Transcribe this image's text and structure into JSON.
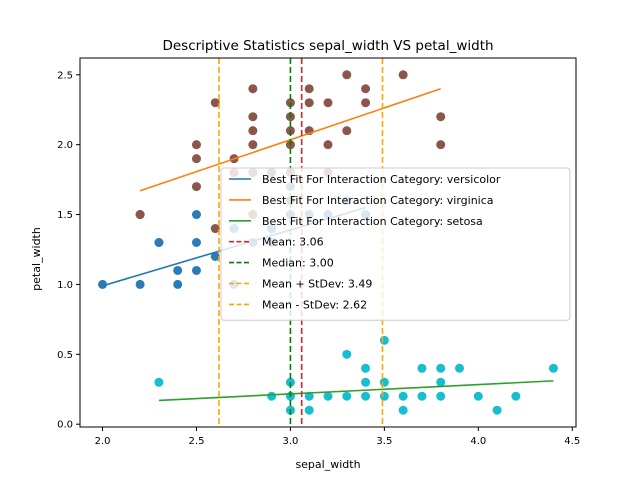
{
  "chart_data": {
    "type": "scatter",
    "title": "Descriptive Statistics sepal_width VS petal_width",
    "xlabel": "sepal_width",
    "ylabel": "petal_width",
    "xlim": [
      1.88,
      4.52
    ],
    "ylim": [
      -0.02,
      2.62
    ],
    "xticks": [
      2.0,
      2.5,
      3.0,
      3.5,
      4.0,
      4.5
    ],
    "xtick_labels": [
      "2.0",
      "2.5",
      "3.0",
      "3.5",
      "4.0",
      "4.5"
    ],
    "yticks": [
      0.0,
      0.5,
      1.0,
      1.5,
      2.0,
      2.5
    ],
    "ytick_labels": [
      "0.0",
      "0.5",
      "1.0",
      "1.5",
      "2.0",
      "2.5"
    ],
    "grid": false,
    "legend_position": "center-right",
    "scatter_groups": [
      {
        "color": "#2c7bb6",
        "points": [
          [
            2.0,
            1.0
          ],
          [
            2.2,
            1.0
          ],
          [
            2.2,
            1.5
          ],
          [
            2.3,
            1.3
          ],
          [
            2.3,
            1.3
          ],
          [
            2.4,
            1.0
          ],
          [
            2.4,
            1.1
          ],
          [
            2.5,
            1.1
          ],
          [
            2.5,
            1.5
          ],
          [
            2.5,
            1.3
          ],
          [
            2.6,
            1.2
          ],
          [
            2.7,
            1.0
          ],
          [
            2.7,
            1.4
          ],
          [
            2.8,
            1.3
          ],
          [
            2.8,
            1.5
          ],
          [
            2.9,
            1.3
          ],
          [
            2.9,
            1.4
          ],
          [
            3.0,
            1.5
          ],
          [
            3.0,
            1.7
          ],
          [
            3.1,
            1.5
          ],
          [
            3.2,
            1.5
          ],
          [
            3.3,
            1.6
          ],
          [
            3.4,
            1.5
          ]
        ]
      },
      {
        "color": "#8c564b",
        "points": [
          [
            2.2,
            1.5
          ],
          [
            2.5,
            1.7
          ],
          [
            2.5,
            1.9
          ],
          [
            2.5,
            2.0
          ],
          [
            2.6,
            1.4
          ],
          [
            2.6,
            2.3
          ],
          [
            2.7,
            1.8
          ],
          [
            2.7,
            1.9
          ],
          [
            2.8,
            1.5
          ],
          [
            2.8,
            1.8
          ],
          [
            2.8,
            2.0
          ],
          [
            2.8,
            2.1
          ],
          [
            2.8,
            2.2
          ],
          [
            2.8,
            2.4
          ],
          [
            2.9,
            1.8
          ],
          [
            3.0,
            1.6
          ],
          [
            3.0,
            1.8
          ],
          [
            3.0,
            2.0
          ],
          [
            3.0,
            2.1
          ],
          [
            3.0,
            2.2
          ],
          [
            3.0,
            2.3
          ],
          [
            3.1,
            2.1
          ],
          [
            3.1,
            2.3
          ],
          [
            3.1,
            2.4
          ],
          [
            3.2,
            1.8
          ],
          [
            3.2,
            2.0
          ],
          [
            3.2,
            2.3
          ],
          [
            3.3,
            2.1
          ],
          [
            3.3,
            2.5
          ],
          [
            3.4,
            2.3
          ],
          [
            3.4,
            2.4
          ],
          [
            3.6,
            2.5
          ],
          [
            3.8,
            2.0
          ],
          [
            3.8,
            2.2
          ]
        ]
      },
      {
        "color": "#17becf",
        "points": [
          [
            2.3,
            0.3
          ],
          [
            2.9,
            0.2
          ],
          [
            3.0,
            0.1
          ],
          [
            3.0,
            0.2
          ],
          [
            3.0,
            0.3
          ],
          [
            3.1,
            0.1
          ],
          [
            3.1,
            0.2
          ],
          [
            3.2,
            0.2
          ],
          [
            3.3,
            0.2
          ],
          [
            3.3,
            0.5
          ],
          [
            3.4,
            0.2
          ],
          [
            3.4,
            0.3
          ],
          [
            3.4,
            0.4
          ],
          [
            3.5,
            0.2
          ],
          [
            3.5,
            0.3
          ],
          [
            3.5,
            0.6
          ],
          [
            3.6,
            0.1
          ],
          [
            3.6,
            0.2
          ],
          [
            3.7,
            0.2
          ],
          [
            3.7,
            0.4
          ],
          [
            3.8,
            0.2
          ],
          [
            3.8,
            0.3
          ],
          [
            3.8,
            0.4
          ],
          [
            3.9,
            0.4
          ],
          [
            4.0,
            0.2
          ],
          [
            4.1,
            0.1
          ],
          [
            4.2,
            0.2
          ],
          [
            4.4,
            0.4
          ]
        ]
      }
    ],
    "fit_lines": [
      {
        "label": "Best Fit For Interaction Category: versicolor",
        "color": "#1f77b4",
        "x": [
          2.0,
          3.4
        ],
        "y": [
          0.99,
          1.55
        ]
      },
      {
        "label": "Best Fit For Interaction Category: virginica",
        "color": "#ff7f0e",
        "x": [
          2.2,
          3.8
        ],
        "y": [
          1.67,
          2.4
        ]
      },
      {
        "label": "Best Fit For Interaction Category: setosa",
        "color": "#2ca02c",
        "x": [
          2.3,
          4.4
        ],
        "y": [
          0.17,
          0.31
        ]
      }
    ],
    "reference_lines": [
      {
        "label": "Mean: 3.06",
        "color": "#d62728",
        "x": 3.06
      },
      {
        "label": "Median: 3.00",
        "color": "#008000",
        "x": 3.0
      },
      {
        "label": "Mean + StDev: 3.49",
        "color": "#ffa500",
        "x": 3.49
      },
      {
        "label": "Mean - StDev: 2.62",
        "color": "#ffa500",
        "x": 2.62
      }
    ]
  }
}
